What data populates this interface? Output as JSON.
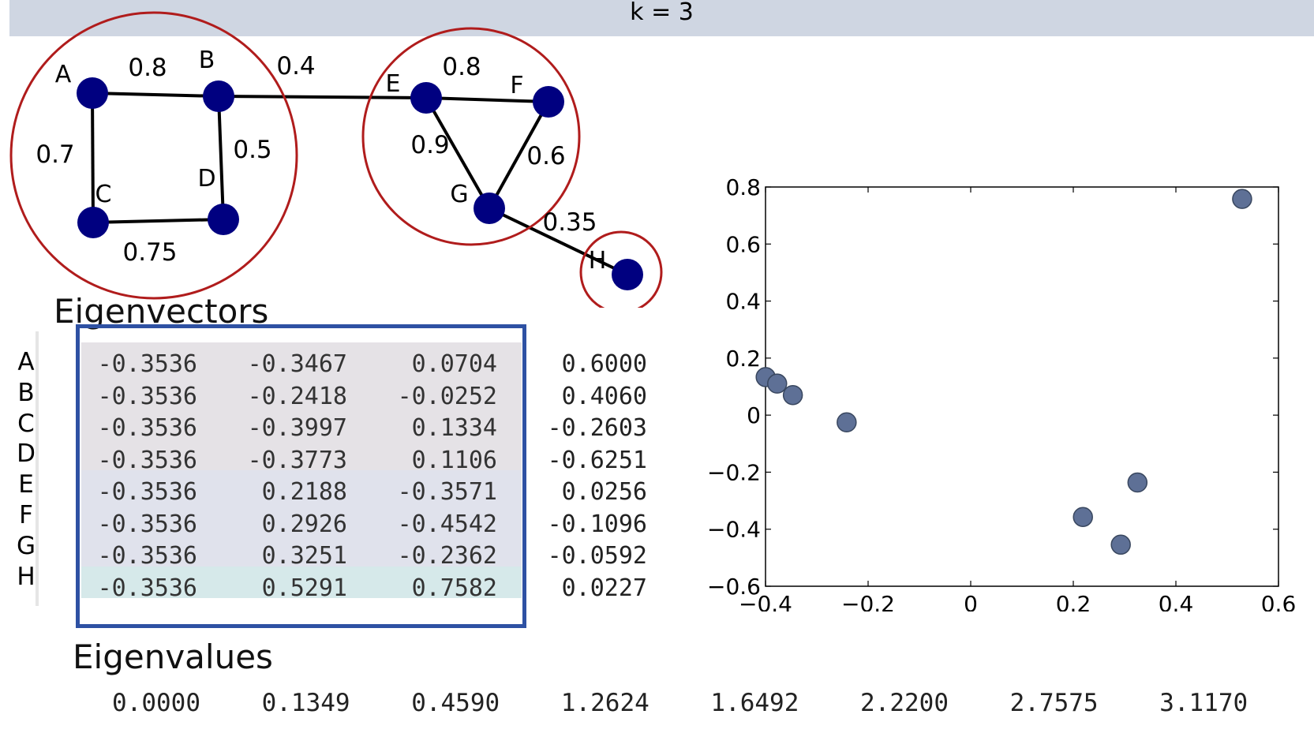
{
  "title": "k = 3",
  "graph": {
    "nodes": [
      {
        "id": "A",
        "label": "A"
      },
      {
        "id": "B",
        "label": "B"
      },
      {
        "id": "C",
        "label": "C"
      },
      {
        "id": "D",
        "label": "D"
      },
      {
        "id": "E",
        "label": "E"
      },
      {
        "id": "F",
        "label": "F"
      },
      {
        "id": "G",
        "label": "G"
      },
      {
        "id": "H",
        "label": "H"
      }
    ],
    "edges": [
      {
        "from": "A",
        "to": "B",
        "weight": "0.8"
      },
      {
        "from": "B",
        "to": "E",
        "weight": "0.4"
      },
      {
        "from": "A",
        "to": "C",
        "weight": "0.7"
      },
      {
        "from": "B",
        "to": "D",
        "weight": "0.5"
      },
      {
        "from": "C",
        "to": "D",
        "weight": "0.75"
      },
      {
        "from": "E",
        "to": "F",
        "weight": "0.8"
      },
      {
        "from": "E",
        "to": "G",
        "weight": "0.9"
      },
      {
        "from": "F",
        "to": "G",
        "weight": "0.6"
      },
      {
        "from": "G",
        "to": "H",
        "weight": "0.35"
      }
    ],
    "clusters": [
      [
        "A",
        "B",
        "C",
        "D"
      ],
      [
        "E",
        "F",
        "G"
      ],
      [
        "H"
      ]
    ],
    "node_color": "#000080",
    "cluster_color": "#b01c1c"
  },
  "eigenvectors": {
    "heading": "Eigenvectors",
    "row_labels": [
      "A",
      "B",
      "C",
      "D",
      "E",
      "F",
      "G",
      "H"
    ],
    "rows": [
      [
        "-0.3536",
        "-0.3467",
        "0.0704",
        "0.6000"
      ],
      [
        "-0.3536",
        "-0.2418",
        "-0.0252",
        "0.4060"
      ],
      [
        "-0.3536",
        "-0.3997",
        "0.1334",
        "-0.2603"
      ],
      [
        "-0.3536",
        "-0.3773",
        "0.1106",
        "-0.6251"
      ],
      [
        "-0.3536",
        "0.2188",
        "-0.3571",
        "0.0256"
      ],
      [
        "-0.3536",
        "0.2926",
        "-0.4542",
        "-0.1096"
      ],
      [
        "-0.3536",
        "0.3251",
        "-0.2362",
        "-0.0592"
      ],
      [
        "-0.3536",
        "0.5291",
        "0.7582",
        "0.0227"
      ]
    ],
    "band_colors": [
      "#e5e2e6",
      "#e0e2ec",
      "#d6e9ea"
    ],
    "box_color": "#2e51a3"
  },
  "eigenvalues": {
    "heading": "Eigenvalues",
    "values": [
      "0.0000",
      "0.1349",
      "0.4590",
      "1.2624",
      "1.6492",
      "2.2200",
      "2.7575",
      "3.1170"
    ]
  },
  "chart_data": {
    "type": "scatter",
    "points": [
      {
        "x": -0.3467,
        "y": 0.0704
      },
      {
        "x": -0.2418,
        "y": -0.0252
      },
      {
        "x": -0.3997,
        "y": 0.1334
      },
      {
        "x": -0.3773,
        "y": 0.1106
      },
      {
        "x": 0.2188,
        "y": -0.3571
      },
      {
        "x": 0.2926,
        "y": -0.4542
      },
      {
        "x": 0.3251,
        "y": -0.2362
      },
      {
        "x": 0.5291,
        "y": 0.7582
      }
    ],
    "xlim": [
      -0.4,
      0.6
    ],
    "ylim": [
      -0.6,
      0.8
    ],
    "xticks": [
      -0.4,
      -0.2,
      0,
      0.2,
      0.4,
      0.6
    ],
    "xtick_labels": [
      "−0.4",
      "−0.2",
      "0",
      "0.2",
      "0.4",
      "0.6"
    ],
    "yticks": [
      -0.6,
      -0.4,
      -0.2,
      0,
      0.2,
      0.4,
      0.6,
      0.8
    ],
    "ytick_labels": [
      "−0.6",
      "−0.4",
      "−0.2",
      "0",
      "0.2",
      "0.4",
      "0.6",
      "0.8"
    ],
    "title": "",
    "xlabel": "",
    "ylabel": "",
    "grid": false,
    "marker_color": "#5e7096"
  }
}
